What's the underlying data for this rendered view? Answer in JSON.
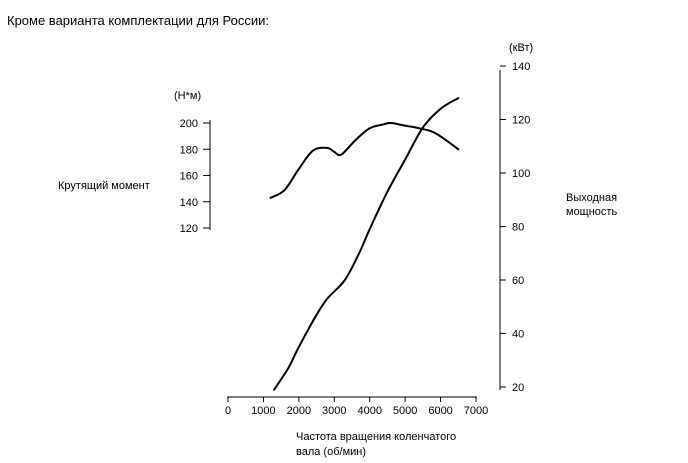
{
  "page": {
    "heading": "Кроме варианта комплектации для России:"
  },
  "chart_data": {
    "type": "line",
    "x": {
      "label_line1": "Частота вращения коленчатого",
      "label_line2": "вала (об/мин)",
      "range": [
        0,
        7000
      ],
      "ticks": [
        0,
        1000,
        2000,
        3000,
        4000,
        5000,
        6000,
        7000
      ]
    },
    "y_left": {
      "unit": "(Н*м)",
      "label": "Крутящий момент",
      "range": [
        120,
        200
      ],
      "ticks": [
        120,
        140,
        160,
        180,
        200
      ]
    },
    "y_right": {
      "unit": "(кВт)",
      "label_line1": "Выходная",
      "label_line2": "мощность",
      "range": [
        20,
        140
      ],
      "ticks": [
        20,
        40,
        60,
        80,
        100,
        120,
        140
      ]
    },
    "series": [
      {
        "axis": "left",
        "points": [
          [
            1200,
            143
          ],
          [
            1600,
            149
          ],
          [
            2000,
            165
          ],
          [
            2400,
            179
          ],
          [
            2800,
            181
          ],
          [
            3000,
            178
          ],
          [
            3200,
            176
          ],
          [
            3600,
            187
          ],
          [
            4000,
            196
          ],
          [
            4400,
            199
          ],
          [
            4600,
            200
          ],
          [
            5000,
            198
          ],
          [
            5400,
            196
          ],
          [
            5800,
            193
          ],
          [
            6200,
            186
          ],
          [
            6500,
            180
          ]
        ]
      },
      {
        "axis": "right",
        "points": [
          [
            1300,
            19
          ],
          [
            1700,
            27
          ],
          [
            2000,
            35
          ],
          [
            2500,
            47
          ],
          [
            2800,
            53
          ],
          [
            3300,
            60
          ],
          [
            3700,
            70
          ],
          [
            4000,
            79
          ],
          [
            4500,
            93
          ],
          [
            5000,
            105
          ],
          [
            5500,
            117
          ],
          [
            6000,
            124
          ],
          [
            6500,
            128
          ]
        ]
      }
    ],
    "legend": "none",
    "grid": false
  }
}
